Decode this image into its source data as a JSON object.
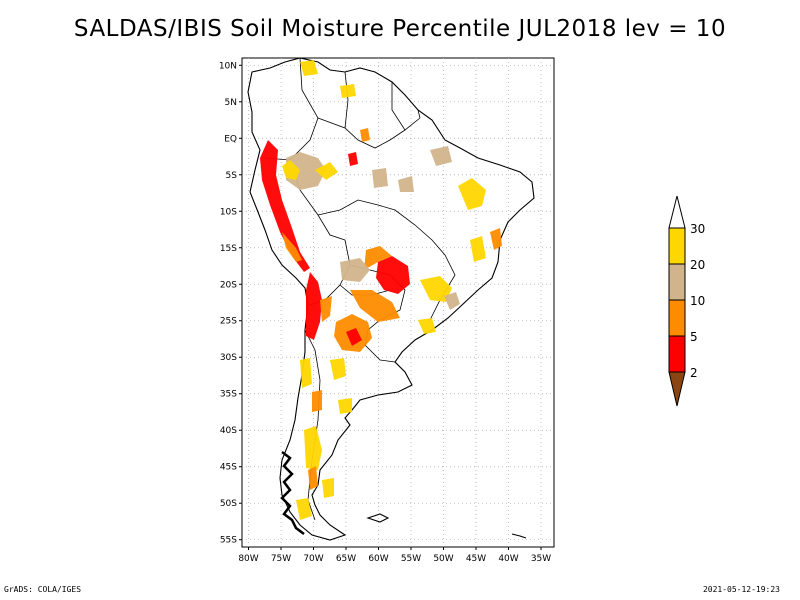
{
  "title": "SALDAS/IBIS Soil Moisture Percentile JUL2018 lev = 10",
  "map": {
    "lat_labels": [
      "10N",
      "5N",
      "EQ",
      "5S",
      "10S",
      "15S",
      "20S",
      "25S",
      "30S",
      "35S",
      "40S",
      "45S",
      "50S",
      "55S"
    ],
    "lon_labels": [
      "80W",
      "75W",
      "70W",
      "65W",
      "60W",
      "55W",
      "50W",
      "45W",
      "40W",
      "35W"
    ],
    "lat_range": [
      -56,
      11
    ],
    "lon_range": [
      -81,
      -33
    ]
  },
  "legend": {
    "levels": [
      "2",
      "5",
      "10",
      "20",
      "30"
    ],
    "colors": {
      "below_2": "#8b4513",
      "p2_5": "#ff0000",
      "p5_10": "#ff8c00",
      "p10_20": "#d2b48c",
      "p20_30": "#ffd700",
      "above_30": "#ffffff"
    }
  },
  "footer": {
    "left": "GrADS: COLA/IGES",
    "right": "2021-05-12-19:23"
  }
}
